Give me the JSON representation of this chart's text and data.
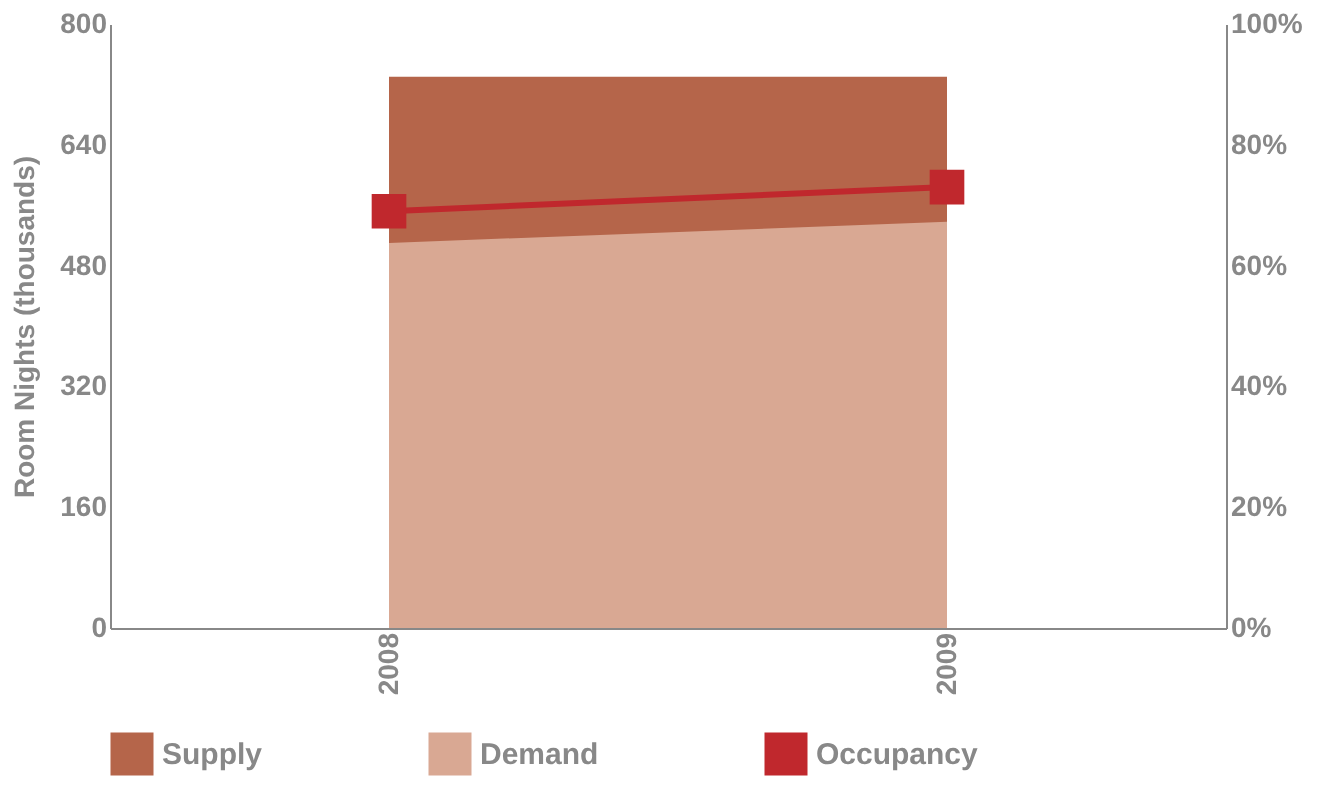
{
  "chart_data": {
    "type": "area",
    "ylabel": "Room Nights (thousands)",
    "categories": [
      "2008",
      "2009"
    ],
    "series": [
      {
        "name": "Supply",
        "color": "#b5654a",
        "values": [
          730,
          730
        ]
      },
      {
        "name": "Demand",
        "color": "#d9a893",
        "values": [
          510,
          538
        ]
      },
      {
        "name": "Occupancy",
        "type": "line",
        "axis": "y2",
        "color": "#c0282d",
        "marker": "square",
        "values": [
          69,
          73
        ]
      }
    ],
    "ylim": [
      0,
      800
    ],
    "yticks": [
      0,
      160,
      320,
      480,
      640,
      800
    ],
    "y2lim": [
      0,
      100
    ],
    "y2ticks": [
      {
        "value": 0,
        "label": "0%"
      },
      {
        "value": 20,
        "label": "20%"
      },
      {
        "value": 40,
        "label": "40%"
      },
      {
        "value": 60,
        "label": "60%"
      },
      {
        "value": 80,
        "label": "80%"
      },
      {
        "value": 100,
        "label": "100%"
      }
    ],
    "legend": "bottom",
    "grid": false
  }
}
